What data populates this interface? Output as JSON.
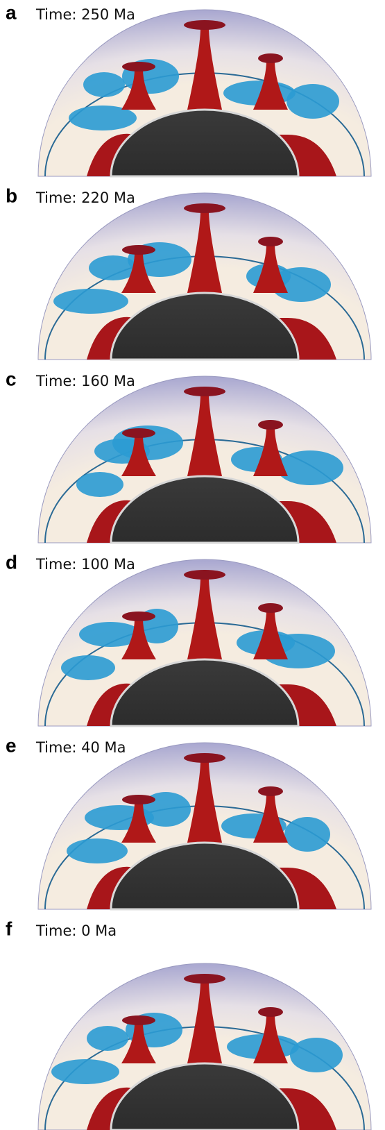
{
  "panels": [
    {
      "letter": "a",
      "time": "Time: 250 Ma"
    },
    {
      "letter": "b",
      "time": "Time: 220 Ma"
    },
    {
      "letter": "c",
      "time": "Time: 160 Ma"
    },
    {
      "letter": "d",
      "time": "Time: 100 Ma"
    },
    {
      "letter": "e",
      "time": "Time: 40 Ma"
    },
    {
      "letter": "f",
      "time": "Time: 0 Ma"
    }
  ]
}
